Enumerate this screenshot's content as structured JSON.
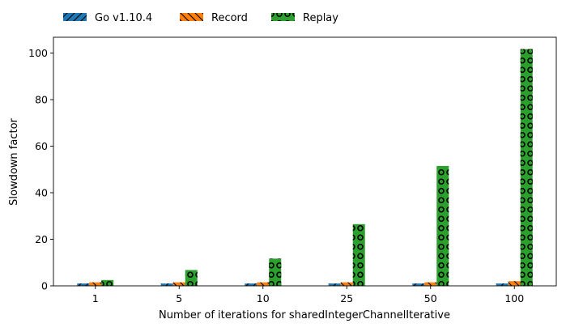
{
  "chart_data": {
    "type": "bar",
    "title": "",
    "xlabel": "Number of iterations for sharedIntegerChannelIterative",
    "ylabel": "Slowdown factor",
    "categories": [
      "1",
      "5",
      "10",
      "25",
      "50",
      "100"
    ],
    "series": [
      {
        "name": "Go v1.10.4",
        "values": [
          1.0,
          1.0,
          1.0,
          1.0,
          1.0,
          1.0
        ],
        "color": "#1f77b4",
        "hatch": "//"
      },
      {
        "name": "Record",
        "values": [
          1.5,
          1.5,
          1.5,
          1.5,
          1.5,
          2.0
        ],
        "color": "#ff7f0e",
        "hatch": "\\\\"
      },
      {
        "name": "Replay",
        "values": [
          2.5,
          6.8,
          11.7,
          26.5,
          51.5,
          101.7
        ],
        "color": "#2ca02c",
        "hatch": "o"
      }
    ],
    "ylim": [
      0,
      106.8
    ],
    "yticks": [
      0,
      20,
      40,
      60,
      80,
      100
    ],
    "grid": false,
    "legend_position": "top-left, above plot"
  }
}
